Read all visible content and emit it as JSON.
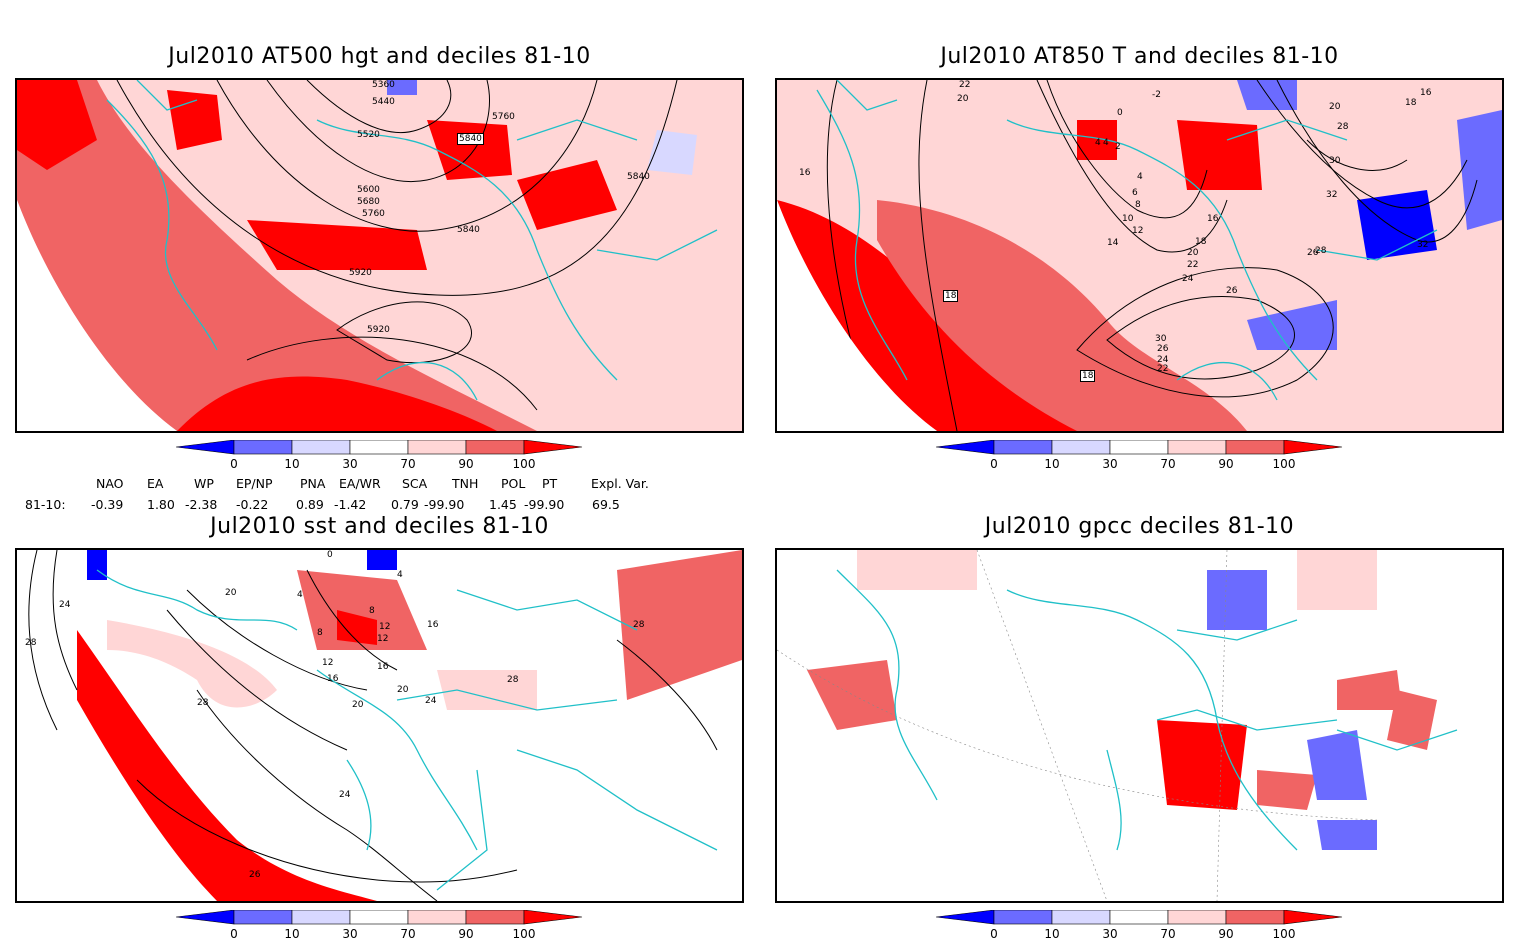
{
  "panels": [
    {
      "title": "Jul2010 AT500 hgt and deciles 81-10",
      "contour_labels": [
        "5360",
        "5440",
        "5520",
        "5600",
        "5680",
        "5760",
        "5840",
        "5760",
        "5840",
        "5840",
        "5920",
        "5920"
      ]
    },
    {
      "title": "Jul2010 AT850 T and deciles 81-10",
      "contour_labels": [
        "22",
        "20",
        "16",
        "18",
        "18",
        "-2",
        "0",
        "2",
        "4",
        "4",
        "6",
        "8",
        "10",
        "12",
        "14",
        "16",
        "18",
        "20",
        "22",
        "24",
        "26",
        "28",
        "30",
        "26",
        "24",
        "22",
        "20",
        "26",
        "28",
        "30",
        "32",
        "32",
        "16",
        "18",
        "4"
      ]
    },
    {
      "title": "Jul2010 sst and deciles 81-10",
      "contour_labels": [
        "24",
        "28",
        "28",
        "20",
        "12",
        "16",
        "20",
        "24",
        "24",
        "28",
        "28",
        "26",
        "0",
        "4",
        "8",
        "12",
        "16",
        "4",
        "8",
        "12",
        "16",
        "20"
      ]
    },
    {
      "title": "Jul2010 gpcc deciles 81-10",
      "contour_labels": []
    }
  ],
  "colorbar": {
    "ticks": [
      "0",
      "10",
      "30",
      "70",
      "90",
      "100"
    ],
    "colors": [
      "#0000ff",
      "#6b6bff",
      "#d8d8ff",
      "#ffffff",
      "#ffd6d6",
      "#f06464",
      "#ff0000"
    ]
  },
  "indices": {
    "headers": [
      "NAO",
      "EA",
      "WP",
      "EP/NP",
      "PNA",
      "EA/WR",
      "SCA",
      "TNH",
      "POL",
      "PT",
      "Expl. Var."
    ],
    "row_label": "81-10:",
    "values": [
      "-0.39",
      "1.80",
      "-2.38",
      "-0.22",
      "0.89",
      "-1.42",
      "0.79",
      "-99.90",
      "1.45",
      "-99.90",
      "69.5"
    ]
  },
  "colors": {
    "coast": "#20c0c8",
    "contour": "#000000",
    "frame": "#000000",
    "light_red": "#ffd6d6",
    "mid_red": "#f06464",
    "red": "#ff0000",
    "light_blue": "#d8d8ff",
    "mid_blue": "#6b6bff",
    "blue": "#0000ff"
  }
}
